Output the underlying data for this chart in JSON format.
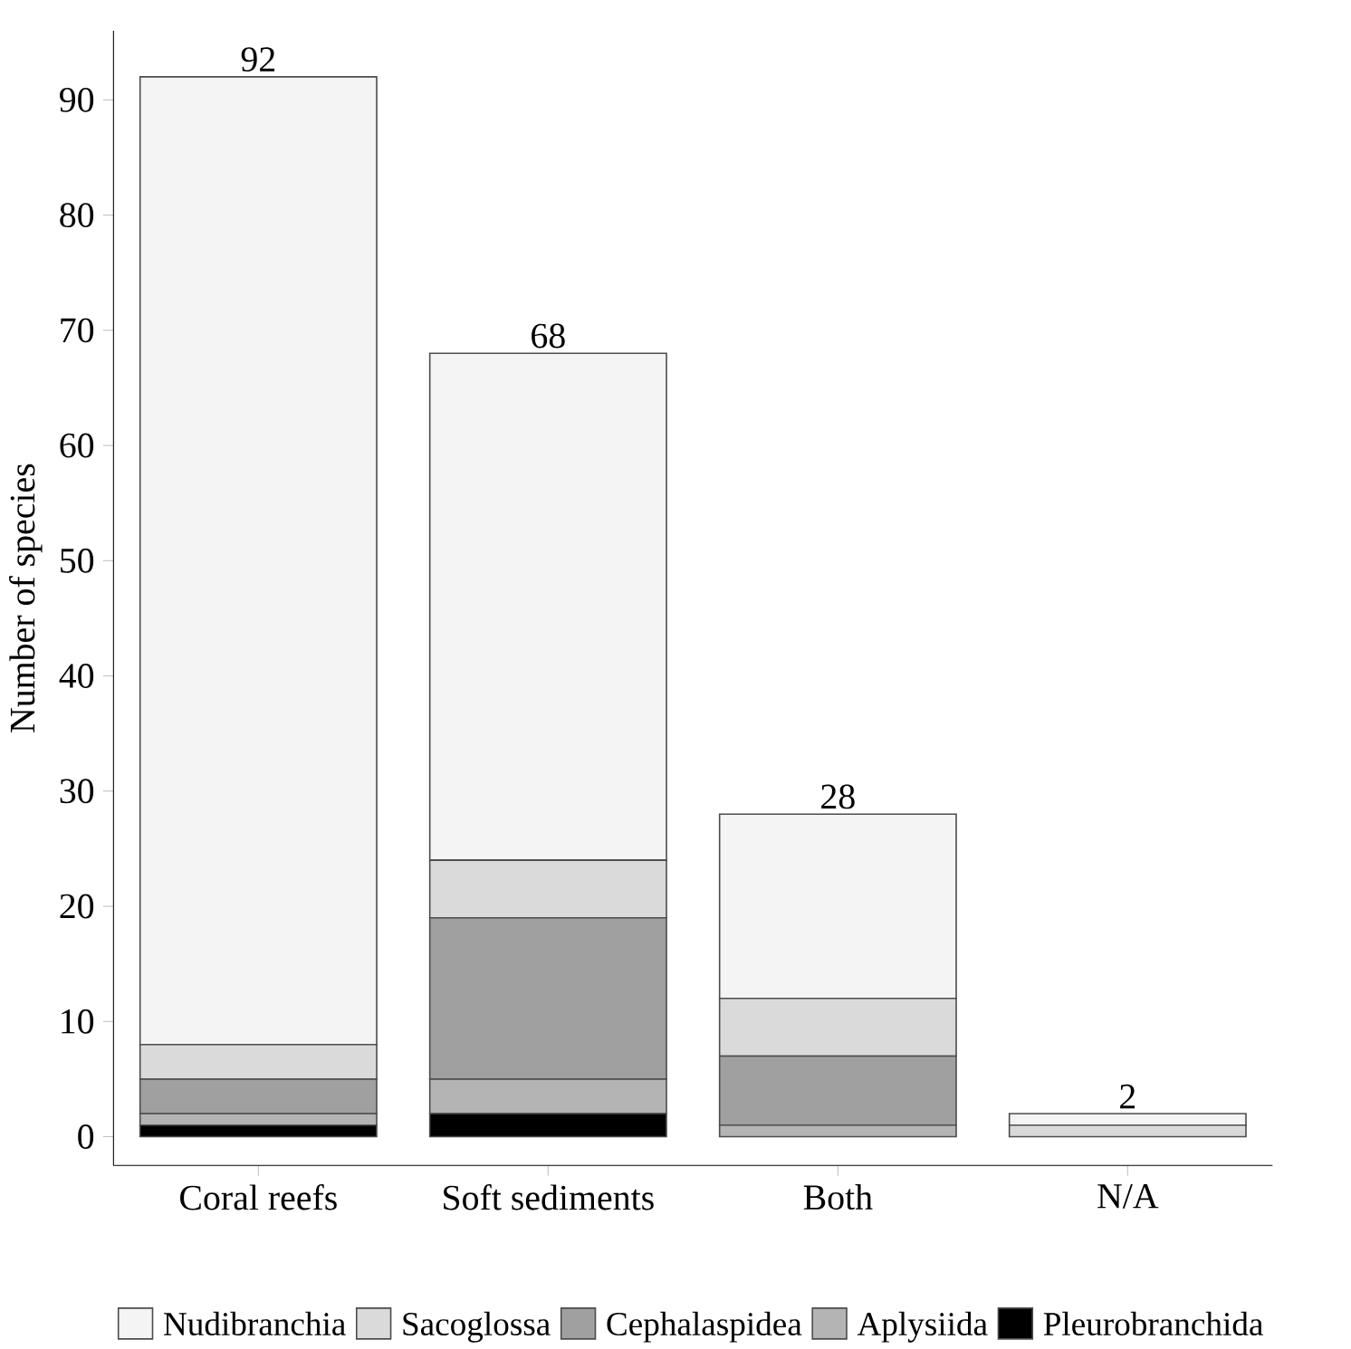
{
  "chart_data": {
    "type": "bar",
    "stacked": true,
    "ylabel": "Number of species",
    "categories": [
      "Coral reefs",
      "Soft sediments",
      "Both",
      "N/A"
    ],
    "series": [
      {
        "name": "Pleurobranchida",
        "color": "#000000",
        "values": [
          1,
          2,
          0,
          0
        ]
      },
      {
        "name": "Aplysiida",
        "color": "#b4b4b4",
        "values": [
          1,
          3,
          1,
          0
        ]
      },
      {
        "name": "Cephalaspidea",
        "color": "#a0a0a0",
        "values": [
          3,
          14,
          6,
          0
        ]
      },
      {
        "name": "Sacoglossa",
        "color": "#dadada",
        "values": [
          3,
          5,
          5,
          1
        ]
      },
      {
        "name": "Nudibranchia",
        "color": "#f4f4f4",
        "values": [
          84,
          44,
          16,
          1
        ]
      }
    ],
    "totals": [
      "92",
      "68",
      "28",
      "2"
    ],
    "ylim": [
      -2.5,
      96
    ],
    "yticks": [
      0,
      10,
      20,
      30,
      40,
      50,
      60,
      70,
      80,
      90
    ],
    "grid": false,
    "legend": "bottom"
  }
}
